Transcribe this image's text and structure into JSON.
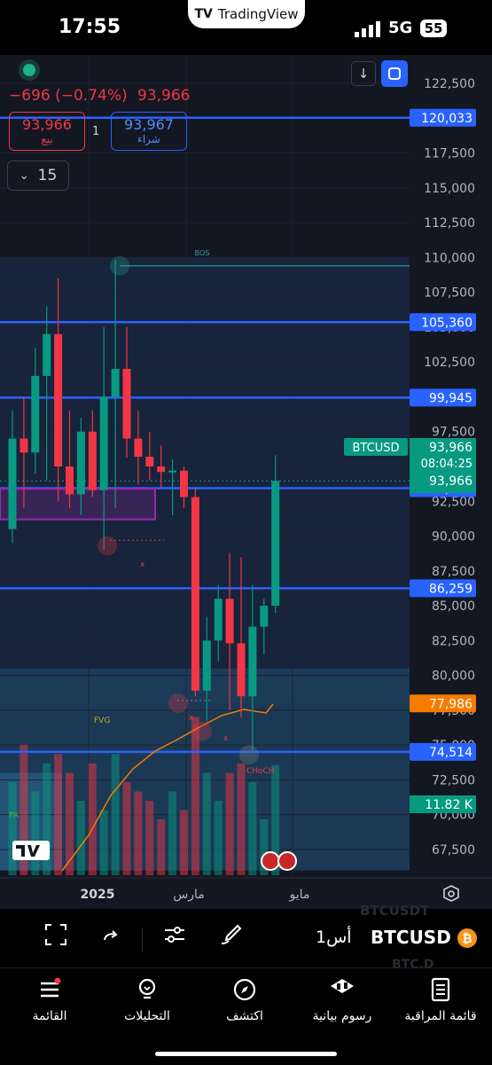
{
  "status_bar": {
    "time": "17:55",
    "app_pill": "TradingView",
    "network": "5G",
    "battery": "55"
  },
  "header": {
    "change_text": "−696 (−0.74%)",
    "last_price": "93,966",
    "sell": {
      "price": "93,966",
      "label": "بيع"
    },
    "quantity": "1",
    "buy": {
      "price": "93,967",
      "label": "شراء"
    },
    "timeframe_value": "15"
  },
  "axis": {
    "ticks": [
      "122,500",
      "120,000",
      "117,500",
      "115,000",
      "112,500",
      "110,000",
      "107,500",
      "105,000",
      "102,500",
      "100,000",
      "97,500",
      "95,000",
      "92,500",
      "90,000",
      "87,500",
      "85,000",
      "82,500",
      "80,000",
      "77,500",
      "75,000",
      "72,500",
      "70,000",
      "67,500"
    ],
    "tick_values": [
      122500,
      120000,
      117500,
      115000,
      112500,
      110000,
      107500,
      105000,
      102500,
      100000,
      97500,
      95000,
      92500,
      90000,
      87500,
      85000,
      82500,
      80000,
      77500,
      75000,
      72500,
      70000,
      67500
    ],
    "badges": [
      {
        "value": 120033,
        "text": "120,033",
        "color": "#2962ff"
      },
      {
        "value": 105360,
        "text": "105,360",
        "color": "#2962ff"
      },
      {
        "value": 99945,
        "text": "99,945",
        "color": "#2962ff"
      },
      {
        "value": 93441,
        "text": "93,441",
        "color": "#2962ff"
      },
      {
        "value": 86259,
        "text": "86,259",
        "color": "#2962ff"
      },
      {
        "value": 77986,
        "text": "77,986",
        "color": "#f57c00"
      },
      {
        "value": 74514,
        "text": "74,514",
        "color": "#2962ff"
      }
    ],
    "current": {
      "symbol": "BTCUSD",
      "price": "93,966",
      "countdown": "08:04:25",
      "price2": "93,966",
      "color": "#089981"
    },
    "volume": {
      "text": "11.82 K",
      "color": "#089981"
    },
    "time_labels": [
      "2025",
      "مارس",
      "مايو"
    ]
  },
  "annotations": {
    "bos": "BOS",
    "fvg": "FVG",
    "choch": "CHoCH",
    "pa": "PA",
    "x": "x"
  },
  "toolbar": {
    "symbol": "BTCUSD",
    "timeframe": "1أس",
    "ghost_top": "BTCUSDT",
    "ghost_bottom": "BTC.D"
  },
  "tabbar": [
    {
      "label": "القائمة",
      "icon": "menu-icon"
    },
    {
      "label": "التحليلات",
      "icon": "lightbulb-icon"
    },
    {
      "label": "اكتشف",
      "icon": "compass-icon"
    },
    {
      "label": "رسوم بيانية",
      "icon": "candles-icon"
    },
    {
      "label": "قائمة المراقبة",
      "icon": "watchlist-icon"
    }
  ],
  "colors": {
    "up": "#089981",
    "down": "#f23645",
    "line": "#2962ff",
    "bg": "#131722"
  },
  "chart_data": {
    "type": "candlestick",
    "symbol": "BTCUSD",
    "timeframe": "1W",
    "ylim": [
      66000,
      124500
    ],
    "candles": [
      {
        "o": 90500,
        "h": 99000,
        "l": 89500,
        "c": 97000
      },
      {
        "o": 97000,
        "h": 100000,
        "l": 92000,
        "c": 96000
      },
      {
        "o": 96000,
        "h": 103500,
        "l": 94500,
        "c": 101500
      },
      {
        "o": 101500,
        "h": 106500,
        "l": 94000,
        "c": 104500
      },
      {
        "o": 104500,
        "h": 108500,
        "l": 92500,
        "c": 95000
      },
      {
        "o": 95000,
        "h": 99000,
        "l": 92000,
        "c": 93000
      },
      {
        "o": 93000,
        "h": 98500,
        "l": 91500,
        "c": 97500
      },
      {
        "o": 97500,
        "h": 99000,
        "l": 92800,
        "c": 93300
      },
      {
        "o": 93300,
        "h": 105000,
        "l": 89000,
        "c": 100000
      },
      {
        "o": 100000,
        "h": 109800,
        "l": 92000,
        "c": 102000
      },
      {
        "o": 102000,
        "h": 105000,
        "l": 95600,
        "c": 97000
      },
      {
        "o": 97000,
        "h": 99000,
        "l": 93700,
        "c": 95700
      },
      {
        "o": 95700,
        "h": 97500,
        "l": 94000,
        "c": 95000
      },
      {
        "o": 95000,
        "h": 96500,
        "l": 93500,
        "c": 94600
      },
      {
        "o": 94600,
        "h": 95500,
        "l": 91500,
        "c": 94700
      },
      {
        "o": 94700,
        "h": 95000,
        "l": 92000,
        "c": 92800
      },
      {
        "o": 92800,
        "h": 93500,
        "l": 78500,
        "c": 78900
      },
      {
        "o": 78900,
        "h": 84200,
        "l": 76700,
        "c": 82500
      },
      {
        "o": 82500,
        "h": 86500,
        "l": 81000,
        "c": 85500
      },
      {
        "o": 85500,
        "h": 88800,
        "l": 77500,
        "c": 82300
      },
      {
        "o": 82300,
        "h": 88500,
        "l": 77000,
        "c": 78500
      },
      {
        "o": 78500,
        "h": 86500,
        "l": 74500,
        "c": 83500
      },
      {
        "o": 83500,
        "h": 85500,
        "l": 81500,
        "c": 85000
      },
      {
        "o": 85000,
        "h": 95800,
        "l": 84500,
        "c": 93966
      }
    ],
    "volume": [
      10,
      14,
      9,
      12,
      13,
      11,
      8,
      12,
      7,
      13,
      10,
      9,
      8,
      6,
      9,
      7,
      17,
      11,
      8,
      11,
      12,
      10,
      6,
      11.82
    ],
    "horizontal_levels": [
      120033,
      105360,
      99945,
      93441,
      86259,
      74514
    ],
    "moving_average_last": 77986,
    "bos_level": 109400
  }
}
